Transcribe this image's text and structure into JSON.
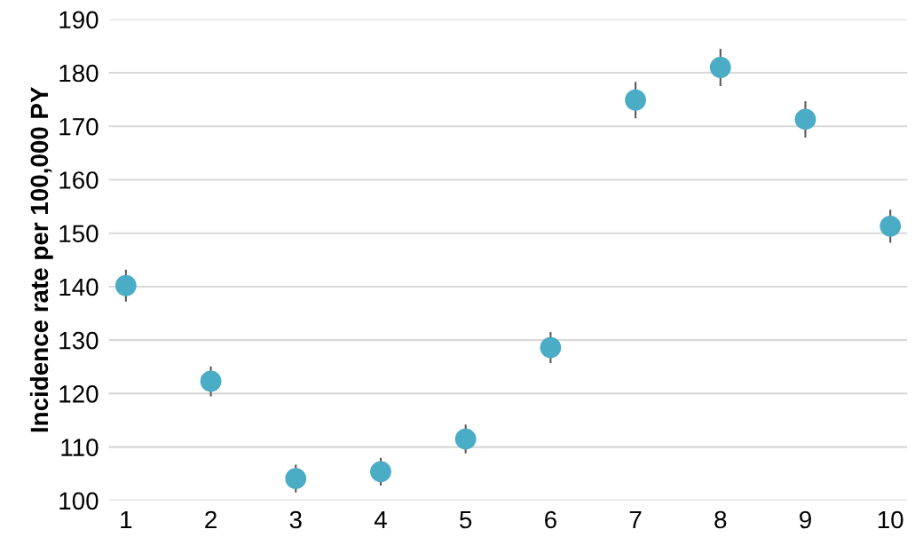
{
  "chart_data": {
    "type": "scatter",
    "ylabel": "Incidence rate per 100,000 PY",
    "categories": [
      "1",
      "2",
      "3",
      "4",
      "5",
      "6",
      "7",
      "8",
      "9",
      "10"
    ],
    "series": [
      {
        "color": "#4bacc6",
        "values": [
          140.2,
          122.3,
          104.1,
          105.4,
          111.5,
          128.6,
          174.9,
          181.0,
          171.3,
          151.3
        ],
        "errors": [
          3.0,
          2.8,
          2.6,
          2.6,
          2.7,
          2.9,
          3.4,
          3.5,
          3.4,
          3.1
        ]
      }
    ],
    "ylim": [
      100,
      190
    ],
    "yticks": [
      100,
      110,
      120,
      130,
      140,
      150,
      160,
      170,
      180,
      190
    ],
    "grid": "y",
    "marker": "circle",
    "legend": false
  }
}
